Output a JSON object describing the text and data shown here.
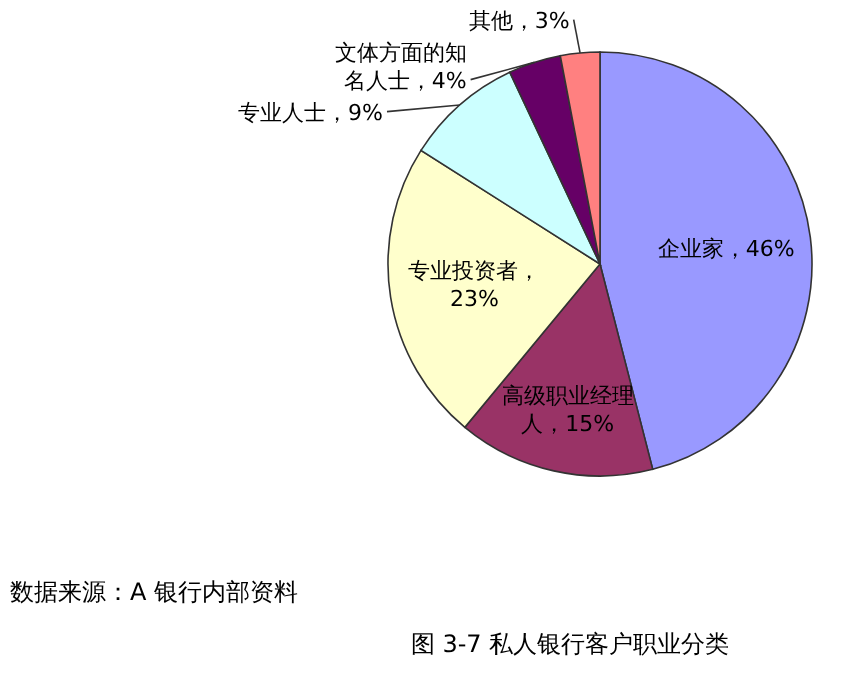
{
  "chart_data": {
    "type": "pie",
    "title": "图 3-7 私人银行客户职业分类",
    "annotations": [
      "数据来源：A 银行内部资料"
    ],
    "categories": [
      "企业家",
      "高级职业经理人",
      "专业投资者",
      "专业人士",
      "文体方面的知名人士",
      "其他"
    ],
    "values": [
      46,
      15,
      23,
      9,
      4,
      3
    ],
    "colors": [
      "#9999ff",
      "#993366",
      "#ffffcc",
      "#ccffff",
      "#660066",
      "#ff8080"
    ],
    "value_labels": [
      "，46%",
      "，15%",
      "，23%",
      "，9%",
      "，4%",
      "，3%"
    ]
  }
}
